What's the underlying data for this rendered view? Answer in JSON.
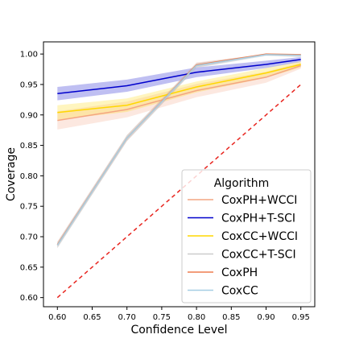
{
  "chart_data": {
    "type": "line",
    "xlabel": "Confidence Level",
    "ylabel": "Coverage",
    "xlim": [
      0.58,
      0.97
    ],
    "ylim": [
      0.585,
      1.02
    ],
    "x_ticks": [
      "0.60",
      "0.65",
      "0.70",
      "0.75",
      "0.80",
      "0.85",
      "0.90",
      "0.95"
    ],
    "y_ticks": [
      "0.60",
      "0.65",
      "0.70",
      "0.75",
      "0.80",
      "0.85",
      "0.90",
      "0.95",
      "1.00"
    ],
    "grid": false,
    "legend": {
      "title": "Algorithm",
      "placement": "lower right"
    },
    "x": [
      0.6,
      0.7,
      0.8,
      0.9,
      0.95
    ],
    "series": [
      {
        "name": "CoxPH+WCCI",
        "color": "#f4a582",
        "values": [
          0.891,
          0.909,
          0.94,
          0.962,
          0.981
        ],
        "band_lower": [
          0.876,
          0.896,
          0.929,
          0.953,
          0.976
        ],
        "band_upper": [
          0.906,
          0.922,
          0.951,
          0.971,
          0.986
        ]
      },
      {
        "name": "CoxPH+T-SCI",
        "color": "#0000cc",
        "values": [
          0.935,
          0.948,
          0.97,
          0.983,
          0.991
        ],
        "band_lower": [
          0.924,
          0.938,
          0.962,
          0.977,
          0.987
        ],
        "band_upper": [
          0.946,
          0.958,
          0.978,
          0.989,
          0.995
        ]
      },
      {
        "name": "CoxCC+WCCI",
        "color": "#ffd700",
        "values": [
          0.904,
          0.916,
          0.946,
          0.969,
          0.983
        ],
        "band_lower": [
          0.892,
          0.905,
          0.937,
          0.961,
          0.978
        ],
        "band_upper": [
          0.916,
          0.927,
          0.955,
          0.977,
          0.988
        ]
      },
      {
        "name": "CoxCC+T-SCI",
        "color": "#cccccc",
        "values": [
          0.686,
          0.862,
          0.981,
          0.999,
          0.998
        ],
        "band_lower": [
          0.681,
          0.857,
          0.977,
          0.997,
          0.995
        ],
        "band_upper": [
          0.691,
          0.867,
          0.985,
          1.0,
          1.0
        ]
      },
      {
        "name": "CoxPH",
        "color": "#ee7d4e",
        "values": [
          0.687,
          0.862,
          0.982,
          1.0,
          0.999
        ],
        "band_lower": [
          0.682,
          0.857,
          0.978,
          0.998,
          0.996
        ],
        "band_upper": [
          0.692,
          0.867,
          0.986,
          1.0,
          1.0
        ]
      },
      {
        "name": "CoxCC",
        "color": "#a6cee3",
        "values": [
          0.686,
          0.862,
          0.981,
          0.999,
          0.998
        ],
        "band_lower": [
          0.681,
          0.857,
          0.977,
          0.997,
          0.995
        ],
        "band_upper": [
          0.691,
          0.867,
          0.985,
          1.0,
          1.0
        ]
      }
    ],
    "reference_line": {
      "style": "dashed",
      "color": "#e8251f",
      "x": [
        0.6,
        0.95
      ],
      "y": [
        0.6,
        0.95
      ]
    }
  }
}
